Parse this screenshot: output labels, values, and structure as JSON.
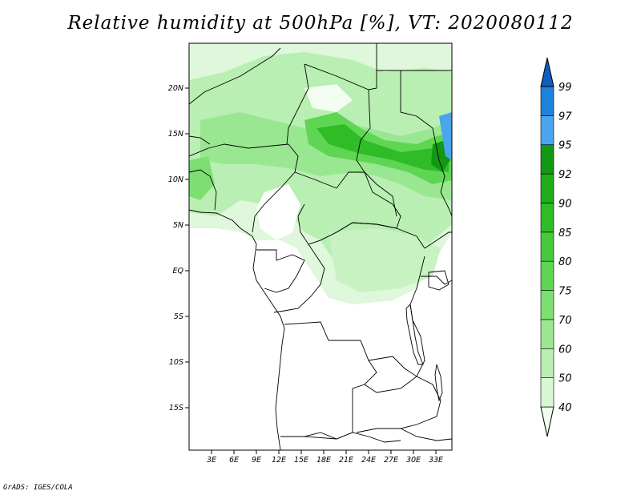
{
  "title": "Relative humidity at 500hPa [%], VT: 2020080112",
  "credit": "GrADS: IGES/COLA",
  "map": {
    "lon_ticks": [
      "3E",
      "6E",
      "9E",
      "12E",
      "15E",
      "18E",
      "21E",
      "24E",
      "27E",
      "30E",
      "33E"
    ],
    "lat_ticks": [
      "20N",
      "15N",
      "10N",
      "5N",
      "EQ",
      "5S",
      "10S",
      "15S"
    ]
  },
  "colorbar": {
    "levels": [
      "40",
      "50",
      "60",
      "70",
      "75",
      "80",
      "85",
      "90",
      "92",
      "95",
      "97",
      "99"
    ],
    "colors": [
      "#f0fff0",
      "#d6f7d2",
      "#b9efb2",
      "#9ae791",
      "#7ddf72",
      "#5fd653",
      "#45c93b",
      "#2fbd27",
      "#1fae1a",
      "#139813",
      "#4aa5ec",
      "#1e82dc",
      "#0f5fbf"
    ]
  }
}
